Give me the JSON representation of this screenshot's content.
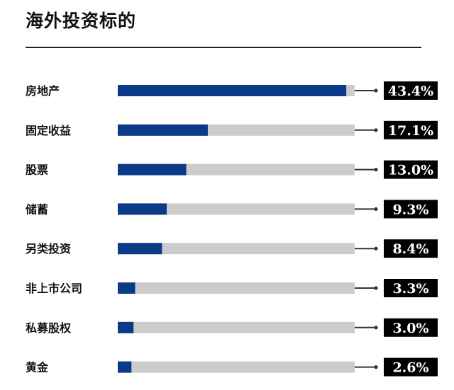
{
  "chart_data": {
    "type": "bar",
    "orientation": "horizontal",
    "title": "海外投资标的",
    "categories": [
      "房地产",
      "固定收益",
      "股票",
      "储蓄",
      "另类投资",
      "非上市公司",
      "私募股权",
      "黄金"
    ],
    "values": [
      43.4,
      17.1,
      13.0,
      9.3,
      8.4,
      3.3,
      3.0,
      2.6
    ],
    "value_labels": [
      "43.4%",
      "17.1%",
      "13.0%",
      "9.3%",
      "8.4%",
      "3.3%",
      "3.0%",
      "2.6%"
    ],
    "xlim": [
      0,
      45
    ],
    "unit": "%",
    "grid": false,
    "legend": "none",
    "colors": {
      "bar": "#0c3a86",
      "track": "#cccccc",
      "label_bg": "#000000",
      "label_text": "#ffffff",
      "connector": "#333333"
    }
  }
}
